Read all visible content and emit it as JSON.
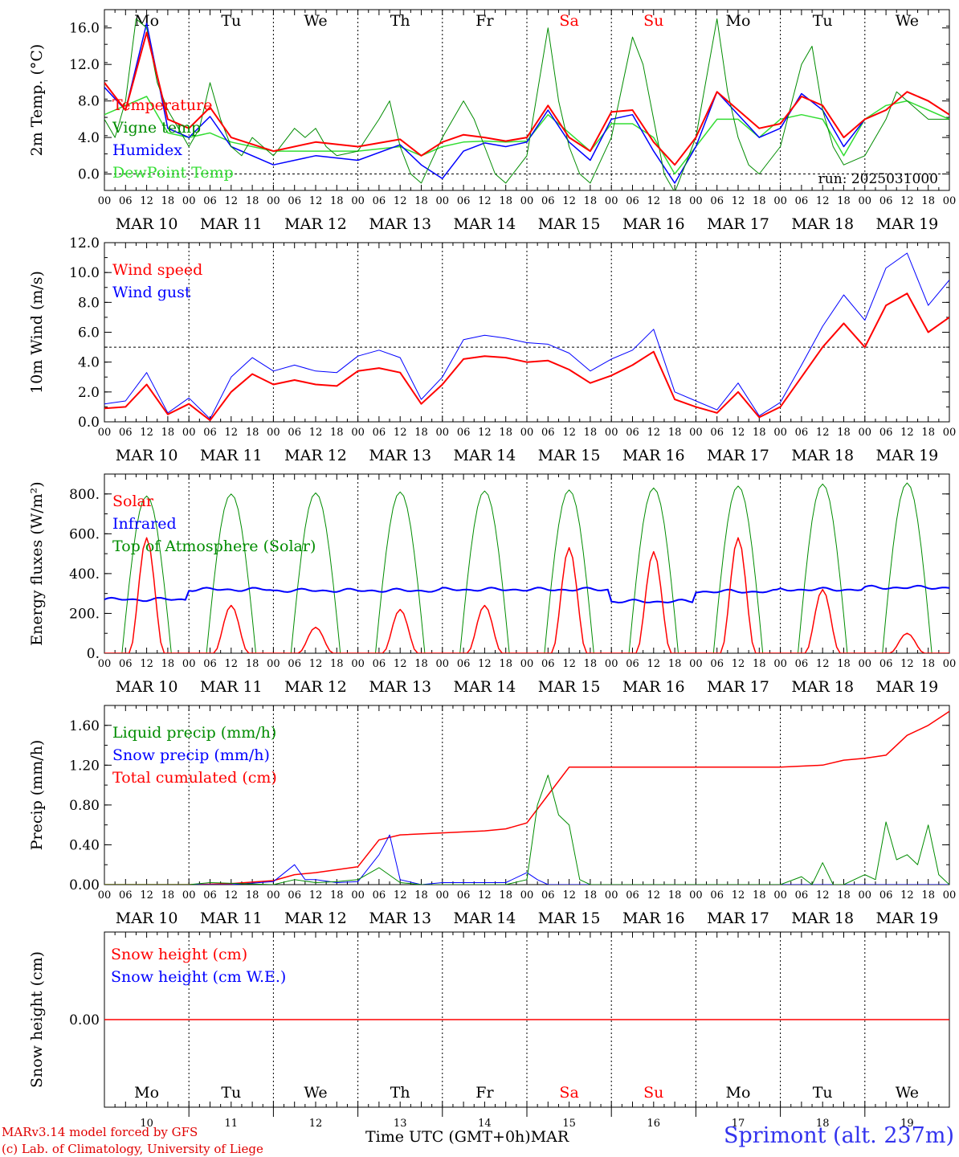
{
  "run_label": "run: 2025031000",
  "day_abbrevs": [
    "Mo",
    "Tu",
    "We",
    "Th",
    "Fr",
    "Sa",
    "Su",
    "Mo",
    "Tu",
    "We"
  ],
  "date_labels": [
    "MAR 10",
    "MAR 11",
    "MAR 12",
    "MAR 13",
    "MAR 14",
    "MAR 15",
    "MAR 16",
    "MAR 17",
    "MAR 18",
    "MAR 19"
  ],
  "hour_labels": [
    "00",
    "06",
    "12",
    "18"
  ],
  "end_hour_label": "00",
  "bottom_day_numbers": [
    "10",
    "11",
    "12",
    "13",
    "14",
    "15",
    "16",
    "17",
    "18",
    "19"
  ],
  "colors": {
    "red": "#ff0000",
    "green": "#008c00",
    "blue": "#0000ff",
    "lightgreen": "#33dd33",
    "weekend": "#ff0000",
    "station": "#3333ee"
  },
  "footer": {
    "line1": "MARv3.14 model forced by GFS",
    "line2": "(c) Lab. of Climatology, University of Liege",
    "xlabel": "Time UTC (GMT+0h)",
    "month": "MAR",
    "station": "Sprimont (alt. 237m)"
  },
  "chart_data": [
    {
      "type": "line",
      "ylabel": "2m Temp. (°C)",
      "ylim": [
        -1.8,
        18.0
      ],
      "yticks": [
        "0.0",
        "4.0",
        "8.0",
        "12.0",
        "16.0"
      ],
      "ytick_values": [
        0,
        4,
        8,
        12,
        16
      ],
      "dashed_line": 0,
      "x_unit": "hours since 10 Mar 00 UTC",
      "series": [
        {
          "name": "Temperature",
          "color": "#ff0000",
          "width": 2,
          "x": [
            0,
            6,
            12,
            18,
            24,
            30,
            36,
            48,
            60,
            72,
            84,
            90,
            96,
            102,
            108,
            114,
            120,
            126,
            132,
            138,
            144,
            150,
            156,
            162,
            168,
            174,
            180,
            186,
            192,
            198,
            204,
            210,
            216,
            222,
            228,
            234,
            240
          ],
          "y": [
            10,
            7,
            15.5,
            6,
            5,
            7.3,
            4,
            2.5,
            3.5,
            3.0,
            3.8,
            2.0,
            3.5,
            4.3,
            4.0,
            3.6,
            4.0,
            7.5,
            4.0,
            2.5,
            6.8,
            7.0,
            3.5,
            1.0,
            4.0,
            9.0,
            7.0,
            5.0,
            5.5,
            8.5,
            7.5,
            4.0,
            6.0,
            7.0,
            9.0,
            8.0,
            6.5
          ]
        },
        {
          "name": "Vigne temp",
          "color": "#008c00",
          "width": 1,
          "x": [
            0,
            3,
            6,
            9,
            12,
            15,
            18,
            21,
            24,
            27,
            30,
            33,
            36,
            39,
            42,
            48,
            54,
            57,
            60,
            63,
            66,
            72,
            78,
            81,
            84,
            87,
            90,
            96,
            102,
            105,
            108,
            111,
            114,
            120,
            126,
            129,
            132,
            135,
            138,
            144,
            150,
            153,
            156,
            159,
            162,
            168,
            174,
            177,
            180,
            183,
            186,
            192,
            198,
            201,
            204,
            207,
            210,
            216,
            222,
            225,
            228,
            231,
            234,
            240
          ],
          "y": [
            6,
            4,
            8,
            17,
            16,
            10,
            7,
            5,
            3,
            5,
            10,
            6,
            3,
            2,
            4,
            2,
            5,
            4,
            5,
            3,
            2,
            2.5,
            6,
            8,
            3,
            0,
            -1,
            4,
            8,
            6,
            3,
            0,
            -1,
            2,
            16,
            8,
            3,
            0,
            -1,
            4,
            15,
            12,
            6,
            0,
            -2,
            4,
            17,
            9,
            4,
            1,
            0,
            3,
            12,
            14,
            7,
            3,
            1,
            2,
            6,
            9,
            8,
            7,
            6,
            6
          ]
        },
        {
          "name": "Humidex",
          "color": "#0000ff",
          "width": 1.5,
          "x": [
            0,
            6,
            12,
            18,
            24,
            30,
            36,
            48,
            60,
            72,
            84,
            90,
            96,
            102,
            108,
            114,
            120,
            126,
            132,
            138,
            144,
            150,
            156,
            162,
            168,
            174,
            180,
            186,
            192,
            198,
            204,
            210,
            216,
            222,
            228,
            234,
            240
          ],
          "y": [
            9.5,
            7,
            16.5,
            5,
            4,
            6.3,
            3,
            1,
            2,
            1.5,
            3.2,
            1.0,
            -0.5,
            2.5,
            3.4,
            3.0,
            3.5,
            7.0,
            3.5,
            1.5,
            6.0,
            6.5,
            2.5,
            -1.0,
            3.0,
            9.0,
            6.5,
            4.0,
            5.0,
            8.8,
            7.0,
            3.0,
            6.0,
            7.0,
            9.0,
            8.0,
            6.5
          ]
        },
        {
          "name": "DewPoint Temp",
          "color": "#33dd33",
          "width": 1.5,
          "x": [
            0,
            6,
            12,
            18,
            24,
            30,
            36,
            48,
            60,
            72,
            84,
            90,
            96,
            102,
            108,
            114,
            120,
            126,
            132,
            138,
            144,
            150,
            156,
            162,
            168,
            174,
            180,
            186,
            192,
            198,
            204,
            210,
            216,
            222,
            228,
            234,
            240
          ],
          "y": [
            6.5,
            7.5,
            8.5,
            4.5,
            4,
            4.5,
            3.5,
            2.5,
            2.5,
            2.5,
            3.0,
            2.0,
            3.0,
            3.5,
            3.6,
            3.5,
            3.6,
            6.5,
            4.5,
            2.5,
            5.5,
            5.5,
            4.0,
            0.0,
            3.0,
            6.0,
            6.0,
            4.0,
            6.0,
            6.5,
            6.0,
            2.0,
            6.0,
            7.5,
            8.0,
            7.0,
            6.0
          ]
        }
      ]
    },
    {
      "type": "line",
      "ylabel": "10m Wind (m/s)",
      "ylim": [
        0,
        12.0
      ],
      "yticks": [
        "0.0",
        "2.0",
        "4.0",
        "6.0",
        "8.0",
        "10.0",
        "12.0"
      ],
      "ytick_values": [
        0,
        2,
        4,
        6,
        8,
        10,
        12
      ],
      "dashed_line": 5,
      "x_unit": "hours since 10 Mar 00 UTC",
      "series": [
        {
          "name": "Wind speed",
          "color": "#ff0000",
          "width": 2,
          "x": [
            0,
            6,
            12,
            18,
            24,
            30,
            36,
            42,
            48,
            54,
            60,
            66,
            72,
            78,
            84,
            90,
            96,
            102,
            108,
            114,
            120,
            126,
            132,
            138,
            144,
            150,
            156,
            162,
            168,
            174,
            180,
            186,
            192,
            198,
            204,
            210,
            216,
            222,
            228,
            234,
            240
          ],
          "y": [
            0.9,
            1.0,
            2.5,
            0.5,
            1.2,
            0.1,
            2.0,
            3.2,
            2.5,
            2.8,
            2.5,
            2.4,
            3.4,
            3.6,
            3.3,
            1.2,
            2.5,
            4.2,
            4.4,
            4.3,
            4.0,
            4.1,
            3.5,
            2.6,
            3.1,
            3.8,
            4.7,
            1.5,
            1.0,
            0.6,
            2.0,
            0.3,
            1.0,
            3.0,
            5.0,
            6.6,
            5.0,
            7.8,
            8.6,
            6.0,
            7.0
          ]
        },
        {
          "name": "Wind gust",
          "color": "#0000ff",
          "width": 1,
          "x": [
            0,
            6,
            12,
            18,
            24,
            30,
            36,
            42,
            48,
            54,
            60,
            66,
            72,
            78,
            84,
            90,
            96,
            102,
            108,
            114,
            120,
            126,
            132,
            138,
            144,
            150,
            156,
            162,
            168,
            174,
            180,
            186,
            192,
            198,
            204,
            210,
            216,
            222,
            228,
            234,
            240
          ],
          "y": [
            1.2,
            1.4,
            3.3,
            0.6,
            1.6,
            0.2,
            3.0,
            4.3,
            3.4,
            3.8,
            3.4,
            3.3,
            4.4,
            4.8,
            4.3,
            1.5,
            3.0,
            5.5,
            5.8,
            5.6,
            5.3,
            5.2,
            4.6,
            3.4,
            4.2,
            4.8,
            6.2,
            2.0,
            1.4,
            0.8,
            2.6,
            0.4,
            1.3,
            3.8,
            6.4,
            8.5,
            6.8,
            10.3,
            11.3,
            7.8,
            9.5
          ]
        }
      ]
    },
    {
      "type": "line",
      "ylabel": "Energy fluxes (W/m²)",
      "ylim": [
        0,
        900
      ],
      "yticks": [
        "0.",
        "200.",
        "400.",
        "600.",
        "800."
      ],
      "ytick_values": [
        0,
        200,
        400,
        600,
        800
      ],
      "x_unit": "hours since 10 Mar 00 UTC",
      "toa_peaks": [
        790,
        800,
        805,
        810,
        815,
        820,
        830,
        840,
        850,
        855
      ],
      "solar_peaks": [
        580,
        240,
        130,
        220,
        240,
        530,
        510,
        580,
        320,
        100
      ],
      "infrared_levels": [
        270,
        320,
        315,
        315,
        320,
        320,
        260,
        310,
        320,
        330
      ],
      "series": [
        {
          "name": "Solar",
          "color": "#ff0000",
          "width": 1.5
        },
        {
          "name": "Infrared",
          "color": "#0000ff",
          "width": 2
        },
        {
          "name": "Top of Atmosphere (Solar)",
          "color": "#008c00",
          "width": 1
        }
      ]
    },
    {
      "type": "line",
      "ylabel": "Precip (mm/h)",
      "ylim": [
        0,
        1.8
      ],
      "yticks": [
        "0.00",
        "0.40",
        "0.80",
        "1.20",
        "1.60"
      ],
      "ytick_values": [
        0,
        0.4,
        0.8,
        1.2,
        1.6
      ],
      "x_unit": "hours since 10 Mar 00 UTC",
      "series": [
        {
          "name": "Liquid precip (mm/h)",
          "color": "#008c00",
          "width": 1,
          "x": [
            0,
            24,
            30,
            48,
            54,
            60,
            66,
            72,
            78,
            84,
            90,
            96,
            114,
            120,
            123,
            126,
            129,
            132,
            135,
            138,
            144,
            192,
            198,
            201,
            204,
            207,
            210,
            216,
            219,
            222,
            225,
            228,
            231,
            234,
            237,
            240
          ],
          "y": [
            0,
            0,
            0.02,
            0,
            0.05,
            0.02,
            0.03,
            0.05,
            0.17,
            0.02,
            0,
            0,
            0,
            0.05,
            0.8,
            1.1,
            0.7,
            0.6,
            0.05,
            0,
            0,
            0,
            0.08,
            0,
            0.22,
            0,
            0,
            0.1,
            0.05,
            0.63,
            0.25,
            0.3,
            0.2,
            0.6,
            0.1,
            0
          ]
        },
        {
          "name": "Snow precip (mm/h)",
          "color": "#0000ff",
          "width": 1,
          "x": [
            0,
            24,
            36,
            48,
            54,
            57,
            60,
            66,
            72,
            78,
            81,
            84,
            90,
            96,
            114,
            120,
            123,
            126,
            132,
            240
          ],
          "y": [
            0,
            0,
            0,
            0.03,
            0.2,
            0.05,
            0.05,
            0.02,
            0.03,
            0.3,
            0.5,
            0.05,
            0,
            0.02,
            0.02,
            0.12,
            0.05,
            0,
            0,
            0
          ]
        },
        {
          "name": "Total cumulated (cm)",
          "color": "#ff0000",
          "width": 1.5,
          "x": [
            0,
            24,
            36,
            48,
            54,
            60,
            72,
            78,
            84,
            96,
            108,
            114,
            120,
            126,
            132,
            144,
            168,
            192,
            204,
            210,
            216,
            222,
            228,
            234,
            240
          ],
          "y": [
            0,
            0,
            0.01,
            0.04,
            0.1,
            0.12,
            0.18,
            0.45,
            0.5,
            0.52,
            0.54,
            0.56,
            0.62,
            0.9,
            1.18,
            1.18,
            1.18,
            1.18,
            1.2,
            1.25,
            1.27,
            1.3,
            1.5,
            1.6,
            1.74
          ]
        }
      ]
    },
    {
      "type": "line",
      "ylabel": "Snow height (cm)",
      "ylim": [
        -1,
        1
      ],
      "yticks": [
        "0.00"
      ],
      "ytick_values": [
        0
      ],
      "x_unit": "hours since 10 Mar 00 UTC",
      "series": [
        {
          "name": "Snow height (cm)",
          "color": "#ff0000",
          "width": 1.5,
          "x": [
            0,
            240
          ],
          "y": [
            0,
            0
          ]
        },
        {
          "name": "Snow height (cm W.E.)",
          "color": "#0000ff",
          "width": 1,
          "x": [
            0,
            240
          ],
          "y": [
            0,
            0
          ]
        }
      ]
    }
  ]
}
